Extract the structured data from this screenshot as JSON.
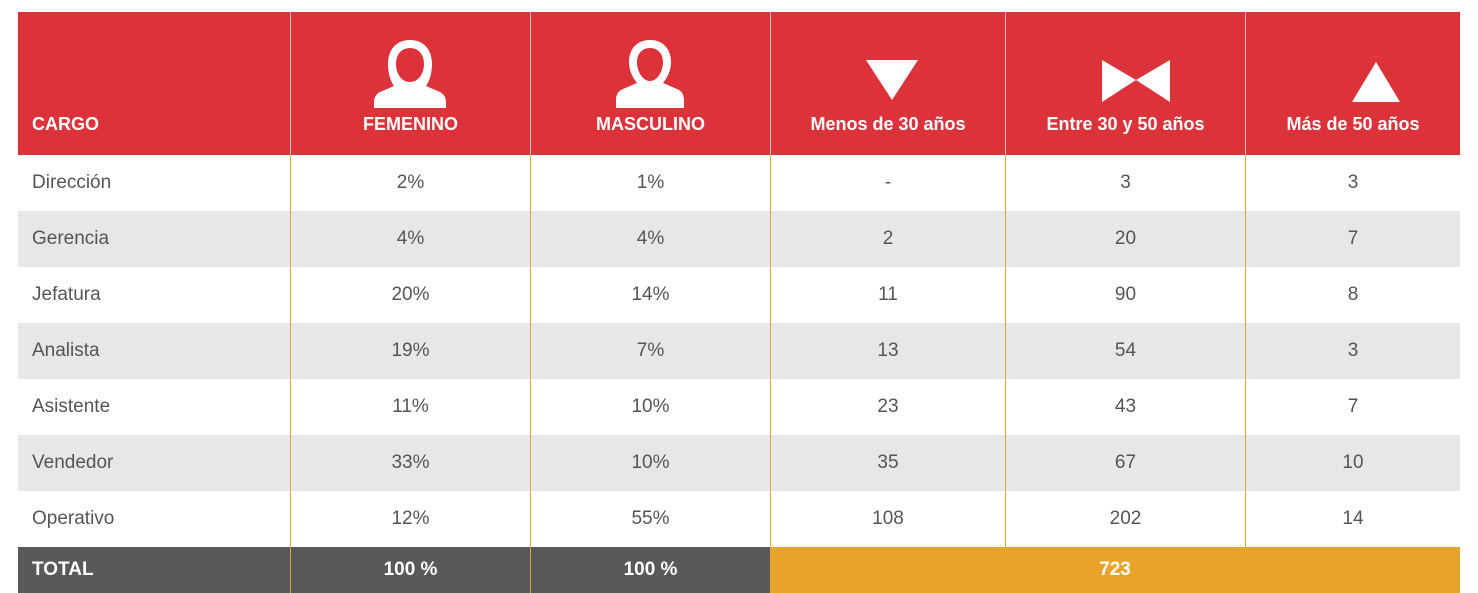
{
  "table": {
    "header": [
      "CARGO",
      "FEMENINO",
      "MASCULINO",
      "Menos de 30 años",
      "Entre 30 y 50 años",
      "Más de 50 años"
    ],
    "rows": [
      [
        "Dirección",
        "2%",
        "1%",
        "-",
        "3",
        "3"
      ],
      [
        "Gerencia",
        "4%",
        "4%",
        "2",
        "20",
        "7"
      ],
      [
        "Jefatura",
        "20%",
        "14%",
        "11",
        "90",
        "8"
      ],
      [
        "Analista",
        "19%",
        "7%",
        "13",
        "54",
        "3"
      ],
      [
        "Asistente",
        "11%",
        "10%",
        "23",
        "43",
        "7"
      ],
      [
        "Vendedor",
        "33%",
        "10%",
        "35",
        "67",
        "10"
      ],
      [
        "Operativo",
        "12%",
        "55%",
        "108",
        "202",
        "14"
      ]
    ],
    "total": [
      "TOTAL",
      "100 %",
      "100 %",
      "723"
    ]
  }
}
